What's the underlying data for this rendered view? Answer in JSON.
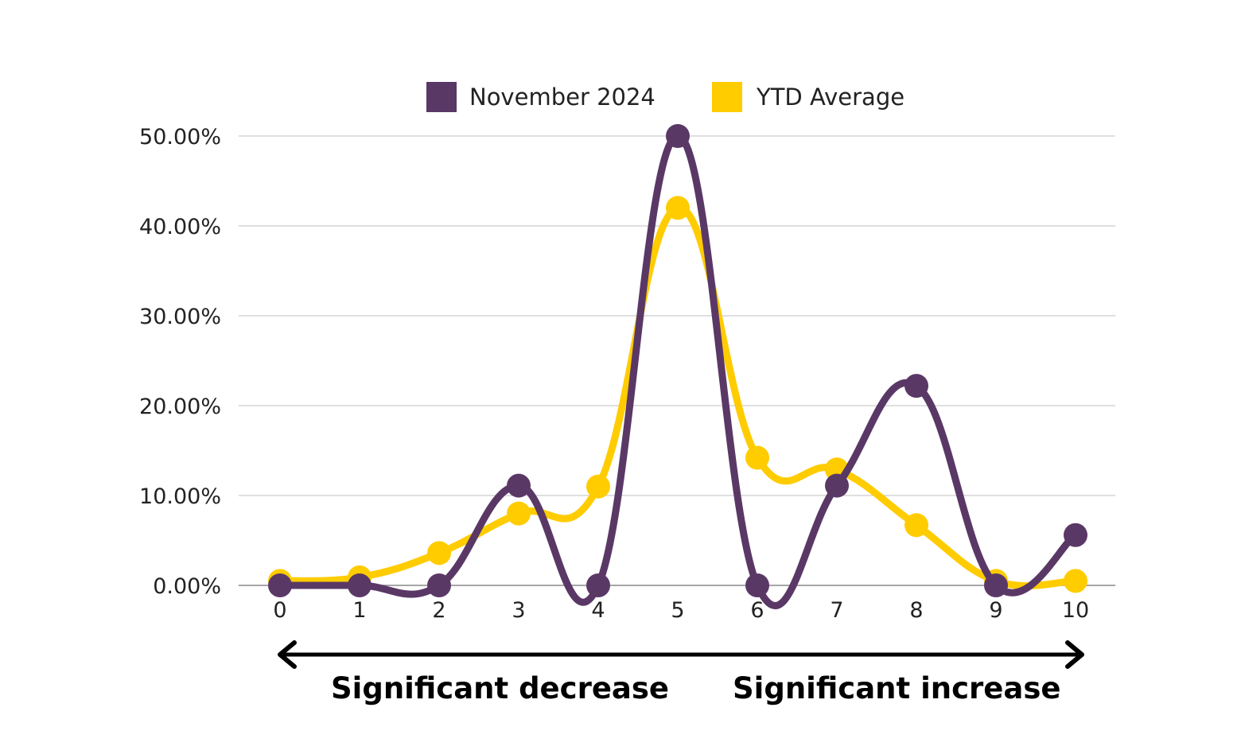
{
  "chart_data": {
    "type": "line",
    "x": [
      0,
      1,
      2,
      3,
      4,
      5,
      6,
      7,
      8,
      9,
      10
    ],
    "series": [
      {
        "name": "November 2024",
        "color": "#5a3866",
        "values": [
          0.0,
          0.0,
          0.0,
          11.1,
          0.0,
          50.0,
          0.0,
          11.1,
          22.2,
          0.0,
          5.6
        ]
      },
      {
        "name": "YTD Average",
        "color": "#ffcc00",
        "values": [
          0.5,
          0.9,
          3.6,
          8.0,
          11.0,
          42.0,
          14.2,
          12.9,
          6.7,
          0.5,
          0.5
        ]
      }
    ],
    "yticks": [
      "0.00%",
      "10.00%",
      "20.00%",
      "30.00%",
      "40.00%",
      "50.00%"
    ],
    "ytick_values": [
      0,
      10,
      20,
      30,
      40,
      50
    ],
    "xticks": [
      "0",
      "1",
      "2",
      "3",
      "4",
      "5",
      "6",
      "7",
      "8",
      "9",
      "10"
    ],
    "ylim": [
      0,
      50
    ],
    "xlim": [
      0,
      10
    ],
    "grid": "horizontal",
    "legend_position": "top",
    "smooth": true
  },
  "scale_arrow": {
    "left_label": "Significant decrease",
    "right_label": "Significant increase"
  },
  "colors": {
    "gridline": "#cccccc",
    "axis": "#888888",
    "arrow": "#000000"
  }
}
